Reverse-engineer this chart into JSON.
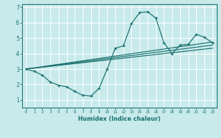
{
  "xlabel": "Humidex (Indice chaleur)",
  "ylabel": "",
  "bg_color": "#c8eaea",
  "grid_color": "#ffffff",
  "line_color": "#1a7070",
  "xlim": [
    -0.5,
    23.5
  ],
  "ylim": [
    0.5,
    7.2
  ],
  "yticks": [
    1,
    2,
    3,
    4,
    5,
    6,
    7
  ],
  "xticks": [
    0,
    1,
    2,
    3,
    4,
    5,
    6,
    7,
    8,
    9,
    10,
    11,
    12,
    13,
    14,
    15,
    16,
    17,
    18,
    19,
    20,
    21,
    22,
    23
  ],
  "curve1_x": [
    0,
    1,
    2,
    3,
    4,
    5,
    6,
    7,
    8,
    9,
    10,
    11,
    12,
    13,
    14,
    15,
    16,
    17,
    18,
    19,
    20,
    21,
    22,
    23
  ],
  "curve1_y": [
    3.0,
    2.85,
    2.6,
    2.15,
    1.95,
    1.85,
    1.55,
    1.3,
    1.25,
    1.75,
    3.0,
    4.35,
    4.5,
    5.95,
    6.65,
    6.7,
    6.3,
    4.7,
    4.0,
    4.55,
    4.6,
    5.25,
    5.05,
    4.7
  ],
  "line1_x": [
    0,
    23
  ],
  "line1_y": [
    3.0,
    4.75
  ],
  "line2_x": [
    0,
    23
  ],
  "line2_y": [
    3.0,
    4.55
  ],
  "line3_x": [
    0,
    23
  ],
  "line3_y": [
    3.0,
    4.35
  ]
}
